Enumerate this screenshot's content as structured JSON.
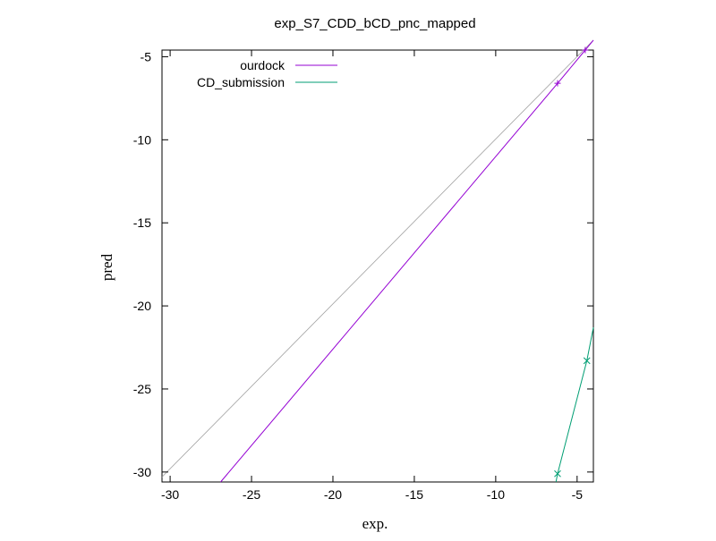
{
  "chart_data": {
    "type": "line",
    "title": "exp_S7_CDD_bCD_pnc_mapped",
    "xlabel": "exp.",
    "ylabel": "pred",
    "xlim": [
      -30.5,
      -4.0
    ],
    "ylim": [
      -30.6,
      -4.6
    ],
    "x_ticks": [
      -30,
      -25,
      -20,
      -15,
      -10,
      -5
    ],
    "y_ticks": [
      -5,
      -10,
      -15,
      -20,
      -25,
      -30
    ],
    "grid": false,
    "legend_position": "top-left",
    "reference_line": {
      "points": [
        [
          -30.5,
          -30.3
        ],
        [
          -4.0,
          -4.0
        ]
      ],
      "color": "#a0a0a0"
    },
    "series": [
      {
        "name": "ourdock",
        "color": "#9400d3",
        "marker": "+",
        "x": [
          -6.2,
          -4.5
        ],
        "y": [
          -6.6,
          -4.6
        ],
        "line": [
          [
            -26.9,
            -30.6
          ],
          [
            -6.2,
            -6.6
          ],
          [
            -4.5,
            -4.6
          ],
          [
            -4.0,
            -4.0
          ]
        ]
      },
      {
        "name": "CD_submission",
        "color": "#009e73",
        "marker": "x",
        "x": [
          -6.2,
          -4.4
        ],
        "y": [
          -30.1,
          -23.3
        ],
        "line": [
          [
            -6.3,
            -30.6
          ],
          [
            -6.2,
            -30.1
          ],
          [
            -4.4,
            -23.3
          ],
          [
            -4.0,
            -21.3
          ]
        ]
      }
    ]
  }
}
